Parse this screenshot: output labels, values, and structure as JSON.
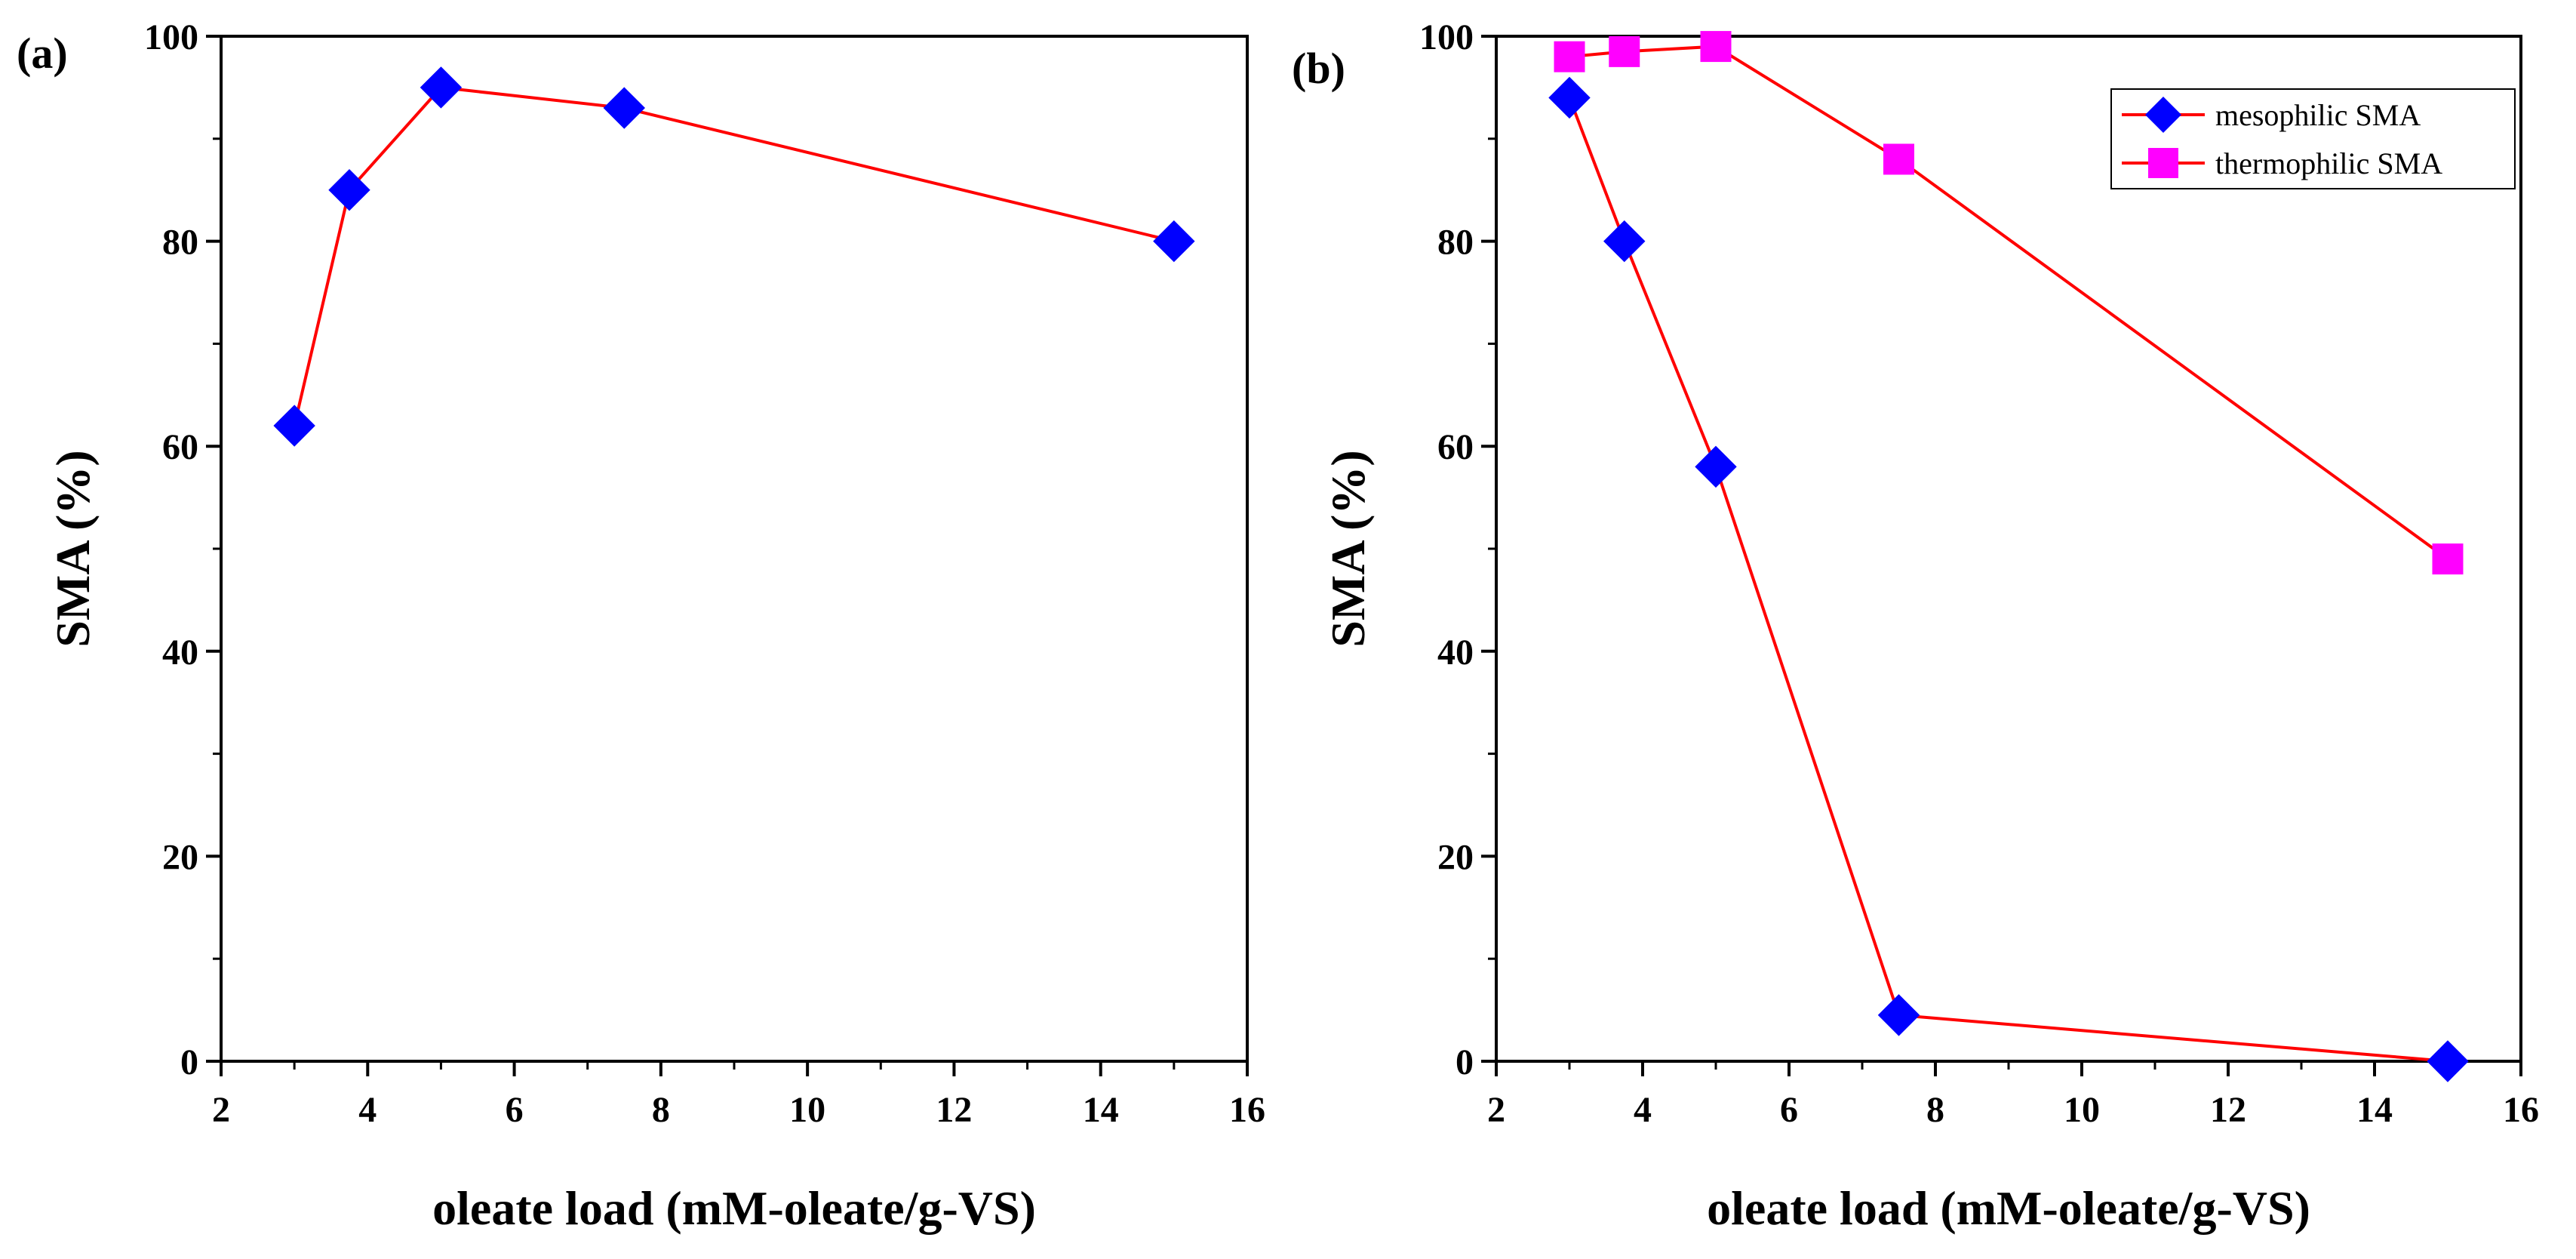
{
  "chart_data": [
    {
      "panel": "(a)",
      "type": "line",
      "xlabel": "oleate load (mM-oleate/g-VS)",
      "ylabel": "SMA (%)",
      "xlim": [
        2,
        16
      ],
      "ylim": [
        0,
        100
      ],
      "xticks": [
        2,
        4,
        6,
        8,
        10,
        12,
        14,
        16
      ],
      "yticks": [
        0,
        20,
        40,
        60,
        80,
        100
      ],
      "series": [
        {
          "name": "mesophilic SMA",
          "marker": "diamond",
          "marker_color": "#0000ff",
          "line_color": "#ff0000",
          "x": [
            3,
            3.75,
            5,
            7.5,
            15
          ],
          "y": [
            62,
            85,
            95,
            93,
            80
          ]
        }
      ]
    },
    {
      "panel": "(b)",
      "type": "line",
      "xlabel": "oleate load (mM-oleate/g-VS)",
      "ylabel": "SMA (%)",
      "xlim": [
        2,
        16
      ],
      "ylim": [
        0,
        100
      ],
      "xticks": [
        2,
        4,
        6,
        8,
        10,
        12,
        14,
        16
      ],
      "yticks": [
        0,
        20,
        40,
        60,
        80,
        100
      ],
      "legend": "top-right",
      "series": [
        {
          "name": "mesophilic SMA",
          "marker": "diamond",
          "marker_color": "#0000ff",
          "line_color": "#ff0000",
          "x": [
            3,
            3.75,
            5,
            7.5,
            15
          ],
          "y": [
            94,
            80,
            58,
            4.5,
            0
          ]
        },
        {
          "name": "thermophilic SMA",
          "marker": "square",
          "marker_color": "#ff00ff",
          "line_color": "#ff0000",
          "x": [
            3,
            3.75,
            5,
            7.5,
            15
          ],
          "y": [
            98,
            98.5,
            99,
            88,
            49
          ]
        }
      ]
    }
  ]
}
